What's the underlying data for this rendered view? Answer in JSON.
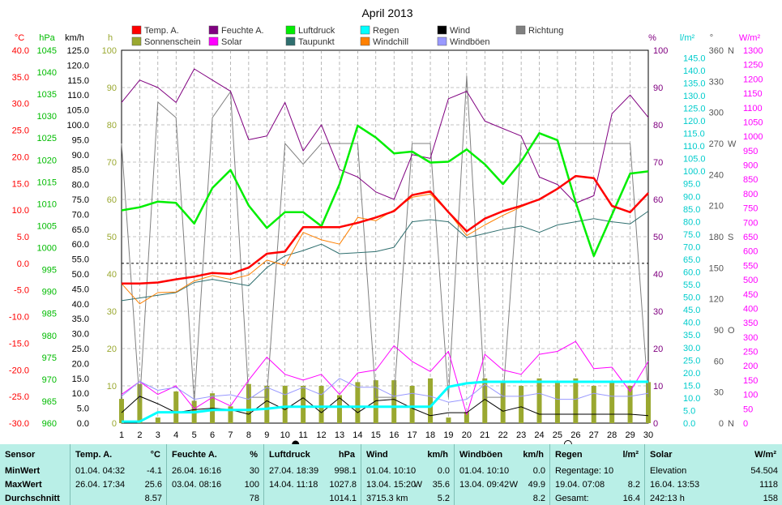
{
  "title": "April 2013",
  "axes": {
    "temp": {
      "label": "°C",
      "min": -30,
      "max": 40,
      "step": 5,
      "color": "#ff0000"
    },
    "pressure": {
      "label": "hPa",
      "min": 960,
      "max": 1045,
      "step": 5,
      "color": "#00bb00"
    },
    "wind": {
      "label": "km/h",
      "min": 0,
      "max": 125,
      "step": 5,
      "color": "#000000"
    },
    "sun": {
      "label": "h",
      "min": 0,
      "max": 100,
      "step": 10,
      "color": "#9aa830"
    },
    "humidity": {
      "label": "%",
      "min": 0,
      "max": 100,
      "step": 10,
      "color": "#800080"
    },
    "rain": {
      "label": "l/m²",
      "min": 0,
      "max": 148,
      "step": 5,
      "color": "#00cccc"
    },
    "direction": {
      "label": "°",
      "min": 0,
      "max": 360,
      "step": 30,
      "compass": {
        "0": "N",
        "90": "O",
        "180": "S",
        "270": "W",
        "360": "N"
      }
    },
    "solar": {
      "label": "W/m²",
      "min": 0,
      "max": 1300,
      "step": 50,
      "color": "#ff00ff"
    }
  },
  "legend": [
    {
      "key": "temp",
      "label": "Temp. A.",
      "color": "#ff0000"
    },
    {
      "key": "hum",
      "label": "Feuchte A.",
      "color": "#800080"
    },
    {
      "key": "press",
      "label": "Luftdruck",
      "color": "#00ee00"
    },
    {
      "key": "rainleg",
      "label": "Regen",
      "color": "#00ffff"
    },
    {
      "key": "wind",
      "label": "Wind",
      "color": "#000000"
    },
    {
      "key": "dir",
      "label": "Richtung",
      "color": "#808080"
    },
    {
      "key": "sun",
      "label": "Sonnenschein",
      "color": "#9aa830"
    },
    {
      "key": "solar",
      "label": "Solar",
      "color": "#ff00ff"
    },
    {
      "key": "dew",
      "label": "Taupunkt",
      "color": "#2f6f6f"
    },
    {
      "key": "chill",
      "label": "Windchill",
      "color": "#ff8000"
    },
    {
      "key": "gust",
      "label": "Windböen",
      "color": "#9999ff"
    }
  ],
  "chart_data": {
    "type": "line",
    "title": "April 2013",
    "x": [
      1,
      2,
      3,
      4,
      5,
      6,
      7,
      8,
      9,
      10,
      11,
      12,
      13,
      14,
      15,
      16,
      17,
      18,
      19,
      20,
      21,
      22,
      23,
      24,
      25,
      26,
      27,
      28,
      29,
      30
    ],
    "xlim": [
      1,
      30
    ],
    "series": [
      {
        "name": "Temp. A.",
        "axis": "temp",
        "values": [
          -3.8,
          -3.8,
          -3.6,
          -3.0,
          -2.5,
          -1.8,
          -2.0,
          -0.8,
          1.8,
          2.2,
          6.8,
          6.8,
          6.8,
          7.6,
          8.6,
          9.8,
          12.8,
          13.5,
          9.6,
          6.0,
          8.4,
          9.8,
          10.8,
          12.0,
          14.0,
          16.4,
          16.0,
          10.8,
          9.6,
          13.2
        ]
      },
      {
        "name": "Taupunkt",
        "axis": "temp",
        "values": [
          -7.0,
          -6.5,
          -6.0,
          -5.5,
          -3.6,
          -3.0,
          -3.6,
          -4.2,
          -0.8,
          1.4,
          2.4,
          3.6,
          1.8,
          2.0,
          2.2,
          3.0,
          7.8,
          8.2,
          7.8,
          4.8,
          5.6,
          6.4,
          7.0,
          5.8,
          7.2,
          7.8,
          8.4,
          7.8,
          7.4,
          9.8
        ]
      },
      {
        "name": "Windchill",
        "axis": "temp",
        "values": [
          -3.8,
          -7.6,
          -5.5,
          -5.4,
          -3.3,
          -2.3,
          -3.0,
          -2.2,
          0.6,
          -0.4,
          5.8,
          4.4,
          3.6,
          8.6,
          8.0,
          10.0,
          12.4,
          13.0,
          9.6,
          5.2,
          7.2,
          9.0,
          10.6,
          12.0,
          14.0,
          16.4,
          16.0,
          10.6,
          9.6,
          13.0
        ]
      },
      {
        "name": "Feuchte A.",
        "axis": "humidity",
        "values": [
          86,
          92,
          90,
          86,
          95,
          92,
          89,
          76,
          77,
          86,
          73,
          80,
          68,
          66,
          62,
          60,
          72,
          71,
          87,
          89,
          81,
          79,
          77,
          66,
          64,
          59,
          61,
          83,
          88,
          82
        ]
      },
      {
        "name": "Luftdruck",
        "axis": "pressure",
        "values": [
          1008.5,
          1009.2,
          1010.5,
          1010.2,
          1005.5,
          1013.6,
          1017.7,
          1009.6,
          1004.5,
          1008.1,
          1008.1,
          1004.9,
          1014.5,
          1027.8,
          1025.1,
          1021.5,
          1021.9,
          1019.4,
          1019.6,
          1022.4,
          1019.0,
          1014.5,
          1019.6,
          1026.1,
          1024.5,
          1010.4,
          998.1,
          1007.5,
          1016.9,
          1017.4
        ]
      },
      {
        "name": "Richtung",
        "axis": "direction",
        "values": [
          270,
          20,
          310,
          295,
          20,
          295,
          320,
          25,
          25,
          270,
          250,
          270,
          270,
          270,
          25,
          25,
          270,
          270,
          25,
          335,
          25,
          25,
          270,
          270,
          270,
          270,
          270,
          270,
          270,
          25
        ]
      },
      {
        "name": "Wind",
        "axis": "wind",
        "values": [
          3.5,
          9.0,
          6.5,
          3.5,
          4.5,
          5.0,
          4.5,
          3.0,
          7.5,
          4.5,
          8.5,
          3.5,
          8.5,
          3.5,
          7.5,
          8.0,
          5.0,
          2.5,
          3.5,
          3.5,
          8.0,
          4.0,
          5.5,
          3.0,
          3.0,
          3.0,
          3.0,
          3.0,
          3.0,
          2.5
        ]
      },
      {
        "name": "Windböen",
        "axis": "wind",
        "values": [
          9.0,
          14.0,
          11.0,
          12.0,
          8.0,
          9.0,
          9.5,
          8.0,
          12.0,
          9.5,
          12.0,
          9.5,
          15.0,
          12.0,
          12.0,
          9.0,
          10.0,
          9.0,
          7.0,
          8.0,
          13.0,
          9.0,
          9.0,
          10.0,
          8.0,
          8.0,
          10.0,
          9.0,
          9.0,
          10.0
        ]
      },
      {
        "name": "Solar",
        "axis": "solar",
        "values": [
          100,
          145,
          100,
          130,
          50,
          90,
          60,
          150,
          230,
          170,
          150,
          170,
          100,
          175,
          185,
          270,
          215,
          180,
          250,
          30,
          240,
          185,
          170,
          240,
          250,
          285,
          190,
          195,
          110,
          215
        ]
      },
      {
        "name": "Regen",
        "axis": "rain",
        "values": [
          0.6,
          0.6,
          4.3,
          4.3,
          4.3,
          5.2,
          5.2,
          5.2,
          5.7,
          6.5,
          6.5,
          6.5,
          6.5,
          6.5,
          6.5,
          6.5,
          6.5,
          6.5,
          14.4,
          15.8,
          16.4,
          16.4,
          16.4,
          16.4,
          16.4,
          16.4,
          16.4,
          16.4,
          16.4,
          16.4
        ]
      },
      {
        "name": "Sonnenschein",
        "axis": "sun",
        "values": [
          6.5,
          10.5,
          1.5,
          8.5,
          6.0,
          8.0,
          4.5,
          10.5,
          10.0,
          10.0,
          10.0,
          10.0,
          7.5,
          11.0,
          11.5,
          11.5,
          10.0,
          12.0,
          1.5,
          3.0,
          12.0,
          11.0,
          10.0,
          12.0,
          11.0,
          12.0,
          10.0,
          11.0,
          10.0,
          11.0
        ]
      }
    ],
    "zero_line": {
      "axis": "temp",
      "value": 0
    },
    "moon_phases": {
      "full": 10,
      "new": 25
    }
  },
  "stats": {
    "header_sensor": "Sensor",
    "row_labels": [
      "MinWert",
      "MaxWert",
      "Durchschnitt"
    ],
    "columns": [
      {
        "title": "Temp. A.",
        "unit": "°C",
        "rows": [
          [
            "01.04.  04:32",
            "",
            "-4.1"
          ],
          [
            "26.04.  17:34",
            "",
            "25.6"
          ],
          [
            "",
            "",
            "8.57"
          ]
        ]
      },
      {
        "title": "Feuchte A.",
        "unit": "%",
        "rows": [
          [
            "26.04.  16:16",
            "",
            "30"
          ],
          [
            "03.04.  08:16",
            "",
            "100"
          ],
          [
            "",
            "",
            "78"
          ]
        ]
      },
      {
        "title": "Luftdruck",
        "unit": "hPa",
        "rows": [
          [
            "27.04.  18:39",
            "",
            "998.1"
          ],
          [
            "14.04.  11:18",
            "",
            "1027.8"
          ],
          [
            "",
            "",
            "1014.1"
          ]
        ]
      },
      {
        "title": "Wind",
        "unit": "km/h",
        "rows": [
          [
            "01.04.  10:10",
            "",
            "0.0"
          ],
          [
            "13.04.  15:20",
            "W",
            "35.6"
          ],
          [
            "3715.3 km",
            "",
            "5.2"
          ]
        ]
      },
      {
        "title": "Windböen",
        "unit": "km/h",
        "rows": [
          [
            "01.04.  10:10",
            "",
            "0.0"
          ],
          [
            "13.04.  09:42",
            "W",
            "49.9"
          ],
          [
            "",
            "",
            "8.2"
          ]
        ]
      },
      {
        "title": "Regen",
        "unit": "l/m²",
        "rows": [
          [
            "Regentage: 10",
            "",
            ""
          ],
          [
            "19.04.  07:08",
            "",
            "8.2"
          ],
          [
            "Gesamt:",
            "",
            "16.4"
          ]
        ]
      },
      {
        "title": "Solar",
        "unit": "W/m²",
        "rows": [
          [
            "Elevation",
            "",
            "54.504"
          ],
          [
            "16.04.  13:53",
            "",
            "1118"
          ],
          [
            "242:13 h",
            "",
            "158"
          ]
        ]
      }
    ]
  }
}
